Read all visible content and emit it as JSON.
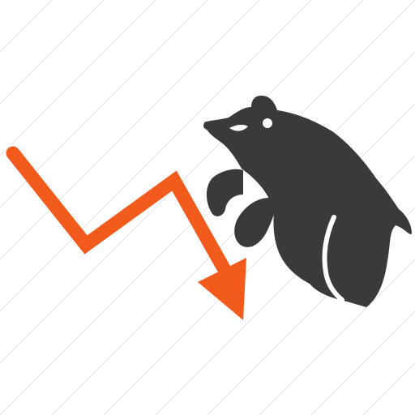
{
  "icon": {
    "name": "bear-market-icon",
    "elements": [
      "falling-trend-arrow",
      "bear"
    ]
  },
  "colors": {
    "background": "#ffffff",
    "watermark_lines": "#e6e6e6",
    "arrow": "#f35b1c",
    "bear": "#3a3a3a",
    "bear_highlight": "#ffffff"
  }
}
